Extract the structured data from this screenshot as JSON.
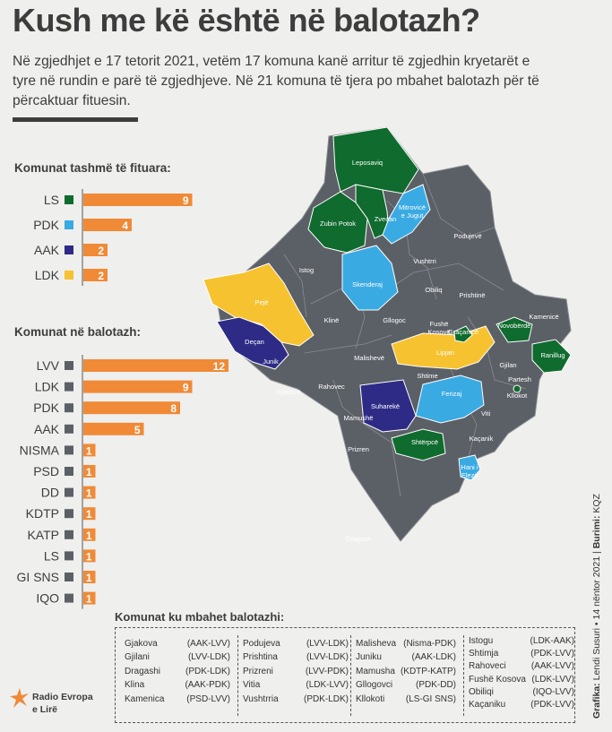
{
  "header": {
    "title": "Kush me kë është në balotazh?",
    "intro": "Në zgjedhjet e 17 tetorit 2021, vetëm 17 komuna kanë arritur të zgjedhin kryetarët e tyre në rundin e parë të zgjedhjeve. Në 21 komuna të tjera po mbahet balotazh për të përcaktuar fituesin."
  },
  "colors": {
    "LS": "#0f6b2e",
    "PDK": "#3aaae3",
    "AAK": "#2e2b86",
    "LDK": "#f6c230",
    "bar": "#f08a36",
    "grey_region": "#5b5f66",
    "square": "#5b5f66"
  },
  "chart_data": [
    {
      "type": "bar",
      "orientation": "horizontal",
      "title": "Komunat tashmë të fituara:",
      "categories": [
        "LS",
        "PDK",
        "AAK",
        "LDK"
      ],
      "values": [
        9,
        4,
        2,
        2
      ],
      "square_colors": [
        "#0f6b2e",
        "#3aaae3",
        "#2e2b86",
        "#f6c230"
      ]
    },
    {
      "type": "bar",
      "orientation": "horizontal",
      "title": "Komunat në balotazh:",
      "categories": [
        "LVV",
        "LDK",
        "PDK",
        "AAK",
        "NISMA",
        "PSD",
        "DD",
        "KDTP",
        "KATP",
        "LS",
        "GI SNS",
        "IQO"
      ],
      "values": [
        12,
        9,
        8,
        5,
        1,
        1,
        1,
        1,
        1,
        1,
        1,
        1
      ]
    }
  ],
  "map": {
    "labels": [
      "Leposaviq",
      "Mitrovicë e Jugut",
      "Zveçan",
      "Zubin Potok",
      "Podujevë",
      "Vushtrri",
      "Istog",
      "Skenderaj",
      "Obiliq",
      "Prishtinë",
      "Pejë",
      "Klinë",
      "Gllogoc",
      "Fushë Kosovë",
      "Kamenicë",
      "Deçan",
      "Junik",
      "Novobërdë",
      "Malishevë",
      "Lipjan",
      "Ranillug",
      "Gjakovë",
      "Rahovec",
      "Shtime",
      "Gjilan",
      "Ferizaj",
      "Suharekë",
      "Viti",
      "Shtërpcë",
      "Kaçanik",
      "Prizren",
      "Hani i Elezit",
      "Dragash",
      "Graçanicë",
      "Mamushë",
      "Partesh",
      "Kllokot"
    ]
  },
  "legend": {
    "title": "Komunat ku mbahet balotazhi:",
    "columns": [
      [
        [
          "Gjakova",
          "(AAK-LVV)"
        ],
        [
          "Gjilani",
          "(LVV-LDK)"
        ],
        [
          "Dragashi",
          "(PDK-LDK)"
        ],
        [
          "Klina",
          "(AAK-PDK)"
        ],
        [
          "Kamenica",
          "(PSD-LVV)"
        ]
      ],
      [
        [
          "Podujeva",
          "(LVV-LDK)"
        ],
        [
          "Prishtina",
          "(LVV-LDK)"
        ],
        [
          "Prizreni",
          "(LVV-PDK)"
        ],
        [
          "Vitia",
          "(LDK-LVV)"
        ],
        [
          "Vushtrria",
          "(PDK-LDK)"
        ]
      ],
      [
        [
          "Malisheva",
          "(Nisma-PDK)"
        ],
        [
          "Juniku",
          "(AAK-LDK)"
        ],
        [
          "Mamusha",
          "(KDTP-KATP)"
        ],
        [
          "Gllogovci",
          "(PDK-DD)"
        ],
        [
          "Kllokoti",
          "(LS-GI SNS)"
        ]
      ],
      [
        [
          "Istogu",
          "(LDK-AAK)"
        ],
        [
          "Shtimja",
          "(PDK-LVV)"
        ],
        [
          "Rahoveci",
          "(AAK-LVV)"
        ],
        [
          "Fushë Kosova",
          "(LDK-LVV)"
        ],
        [
          "Obiliqi",
          "(IQO-LVV)"
        ],
        [
          "Kaçaniku",
          "(PDK-LVV)"
        ]
      ]
    ]
  },
  "credit": {
    "grafika_label": "Grafika:",
    "grafika": "Lendi Susuri • 14 nëntor 2021",
    "burimi_label": "Burimi:",
    "burimi": "KQZ"
  },
  "logo": {
    "line1": "Radio Evropa",
    "line2": "e Lirë"
  }
}
